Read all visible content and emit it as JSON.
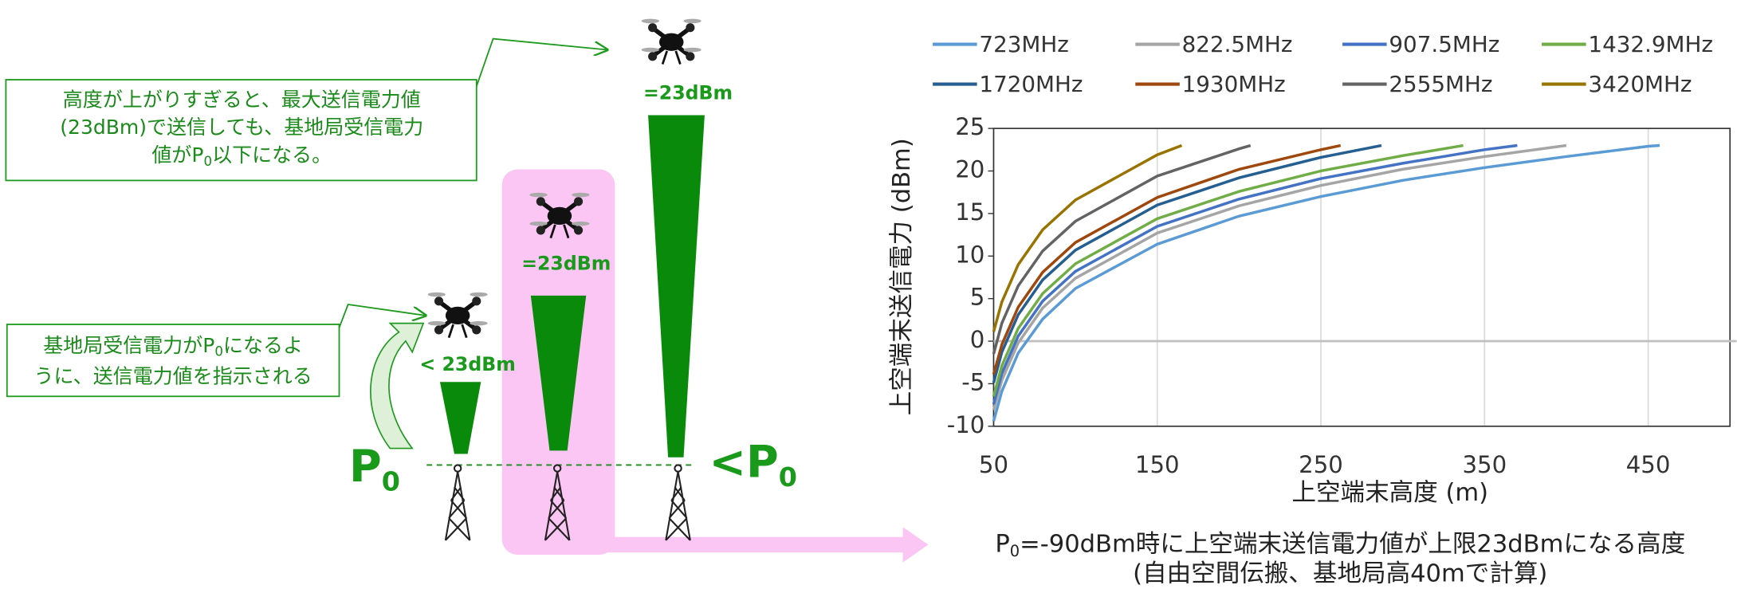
{
  "diagram": {
    "note1": [
      "高度が上がりすぎると、最大送信電力値",
      "(23dBm)で送信しても、基地局受信電力",
      [
        "値がP",
        "0",
        "以下になる。"
      ]
    ],
    "note2": [
      [
        "基地局受信電力がP",
        "0",
        "になるよ"
      ],
      "うに、送信電力値を指示される"
    ],
    "labels": [
      "< 23dBm",
      "=23dBm",
      "=23dBm"
    ],
    "p0": [
      "P",
      "0"
    ],
    "lt_p0": [
      "<P",
      "0"
    ]
  },
  "chart_data": {
    "type": "line",
    "x_label": "上空端末高度 (m)",
    "y_label": "上空端末送信電力 (dBm)",
    "caption": [
      [
        "P",
        "0",
        "=-90dBm時に上空端末送信電力値が上限23dBmになる高度"
      ],
      "(自由空間伝搬、基地局高40mで計算)"
    ],
    "xlim": [
      50,
      500
    ],
    "xticks": [
      50,
      150,
      250,
      350,
      450
    ],
    "ylim": [
      -10,
      25
    ],
    "yticks": [
      -10,
      -5,
      0,
      5,
      10,
      15,
      20,
      25
    ],
    "grid": true,
    "series": [
      {
        "name": "723MHz",
        "color": "#5b9bd5",
        "x": [
          50,
          55,
          65,
          80,
          100,
          150,
          200,
          250,
          300,
          350,
          400,
          450,
          457
        ],
        "values": [
          -9.4,
          -5.9,
          -1.4,
          2.6,
          6.2,
          11.4,
          14.7,
          17.0,
          18.9,
          20.4,
          21.7,
          22.9,
          23
        ]
      },
      {
        "name": "822.5MHz",
        "color": "#a5a5a5",
        "x": [
          50,
          55,
          65,
          80,
          100,
          150,
          200,
          250,
          300,
          350,
          400
        ],
        "values": [
          -8.1,
          -4.6,
          -0.2,
          3.9,
          7.4,
          12.7,
          15.9,
          18.3,
          20.2,
          21.7,
          23
        ]
      },
      {
        "name": "907.5MHz",
        "color": "#4472c4",
        "x": [
          50,
          55,
          65,
          80,
          100,
          150,
          200,
          250,
          300,
          350,
          370
        ],
        "values": [
          -7.4,
          -3.8,
          0.6,
          4.7,
          8.2,
          13.5,
          16.7,
          19.1,
          20.9,
          22.5,
          23
        ]
      },
      {
        "name": "1432.9MHz",
        "color": "#70ad47",
        "x": [
          50,
          55,
          65,
          80,
          100,
          150,
          200,
          250,
          300,
          337
        ],
        "values": [
          -6.5,
          -2.9,
          1.5,
          5.6,
          9.1,
          14.4,
          17.6,
          20.0,
          21.8,
          23
        ]
      },
      {
        "name": "1720MHz",
        "color": "#255e91",
        "x": [
          50,
          55,
          65,
          80,
          100,
          150,
          200,
          250,
          287
        ],
        "values": [
          -4.9,
          -1.3,
          3.1,
          7.2,
          10.7,
          16.0,
          19.2,
          21.6,
          23
        ]
      },
      {
        "name": "1930MHz",
        "color": "#9e480e",
        "x": [
          50,
          55,
          65,
          80,
          100,
          150,
          200,
          250,
          262
        ],
        "values": [
          -3.9,
          -0.4,
          4.0,
          8.1,
          11.6,
          16.9,
          20.2,
          22.5,
          23
        ]
      },
      {
        "name": "2555MHz",
        "color": "#636363",
        "x": [
          50,
          55,
          65,
          80,
          100,
          150,
          200,
          207
        ],
        "values": [
          -1.5,
          2.1,
          6.5,
          10.6,
          14.1,
          19.4,
          22.6,
          23
        ]
      },
      {
        "name": "3420MHz",
        "color": "#997300",
        "x": [
          50,
          55,
          65,
          80,
          100,
          150,
          165
        ],
        "values": [
          1.1,
          4.6,
          9.0,
          13.1,
          16.6,
          21.9,
          23
        ]
      }
    ]
  }
}
